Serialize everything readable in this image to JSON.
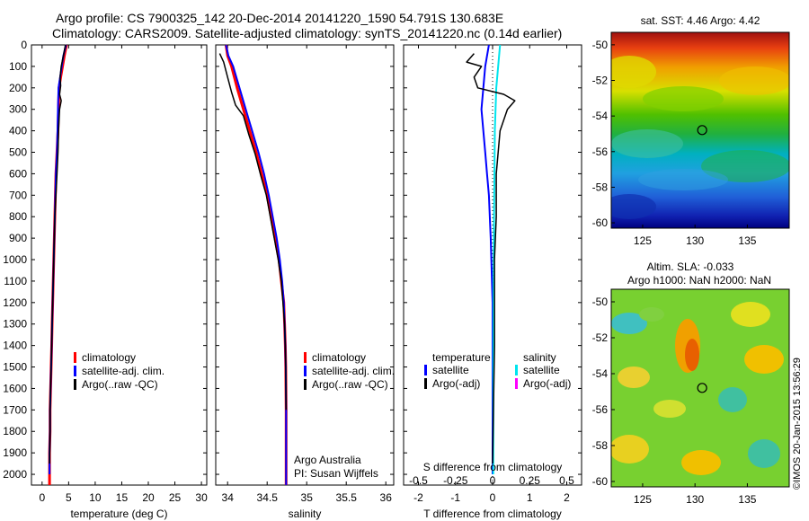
{
  "title": {
    "line1": "Argo profile: CS 7900325_142 20-Dec-2014 20141220_1590 54.791S 130.683E",
    "line2": "Climatology: CARS2009. Satellite-adjusted climatology: synTS_20141220.nc (0.14d earlier)"
  },
  "credit": "©IMOS 20-Jan-2015 13:56:29",
  "colors": {
    "climatology": "#ff0000",
    "satellite_adj": "#0000ff",
    "argo": "#000000",
    "salinity_satellite": "#00e5ee",
    "salinity_argo": "#ff00ff"
  },
  "chart_data": [
    {
      "id": "temperature",
      "type": "line",
      "xlabel": "temperature (deg C)",
      "ylabel": "",
      "xlim": [
        -2,
        31
      ],
      "ylim": [
        2050,
        0
      ],
      "xticks": [
        0,
        5,
        10,
        15,
        20,
        25,
        30
      ],
      "yticks": [
        0,
        100,
        200,
        300,
        400,
        500,
        600,
        700,
        800,
        900,
        1000,
        1100,
        1200,
        1300,
        1400,
        1500,
        1600,
        1700,
        1800,
        1900,
        2000
      ],
      "legend": [
        "climatology",
        "satellite-adj. clim.",
        "Argo(..raw -QC)"
      ],
      "series": [
        {
          "name": "climatology",
          "color": "#ff0000",
          "width": 3,
          "x": [
            4.6,
            4.2,
            3.5,
            3.2,
            3.1,
            3.0,
            2.8,
            2.6,
            2.4,
            2.2,
            2.0,
            1.9,
            1.8,
            1.7,
            1.6,
            1.5,
            1.5,
            1.4,
            1.4,
            1.4
          ],
          "y": [
            0,
            50,
            150,
            200,
            300,
            400,
            500,
            600,
            800,
            1000,
            1200,
            1300,
            1400,
            1500,
            1600,
            1700,
            1800,
            1900,
            2000,
            2050
          ]
        },
        {
          "name": "satellite-adj. clim.",
          "color": "#0000ff",
          "width": 2,
          "x": [
            4.5,
            4.0,
            3.4,
            3.1,
            3.0,
            2.9,
            2.8,
            2.6,
            2.4,
            2.2,
            2.0,
            1.9,
            1.8,
            1.7,
            1.6,
            1.5,
            1.5,
            1.4,
            1.4
          ],
          "y": [
            0,
            50,
            150,
            200,
            300,
            400,
            500,
            600,
            800,
            1000,
            1200,
            1300,
            1400,
            1500,
            1600,
            1700,
            1800,
            1900,
            2000
          ]
        },
        {
          "name": "Argo(..raw -QC)",
          "color": "#000000",
          "width": 1.5,
          "x": [
            4.4,
            4.1,
            3.6,
            3.4,
            3.5,
            3.3,
            3.6,
            3.3,
            3.1,
            3.0,
            2.8,
            2.6,
            2.4,
            2.2,
            2.0,
            1.9,
            1.8,
            1.7,
            1.6,
            1.5,
            1.5,
            1.4
          ],
          "y": [
            0,
            40,
            100,
            150,
            190,
            230,
            260,
            300,
            400,
            500,
            600,
            700,
            800,
            1000,
            1200,
            1300,
            1400,
            1500,
            1600,
            1700,
            1800,
            1950
          ]
        }
      ]
    },
    {
      "id": "salinity",
      "type": "line",
      "xlabel": "salinity",
      "ylabel": "",
      "xlim": [
        33.85,
        36.1
      ],
      "ylim": [
        2050,
        0
      ],
      "xticks": [
        34,
        34.5,
        35,
        35.5,
        36
      ],
      "legend": [
        "climatology",
        "satellite-adj. clim.",
        "Argo(..raw -QC)"
      ],
      "annotations": [
        "Argo Australia",
        "PI: Susan Wijffels"
      ],
      "series": [
        {
          "name": "climatology",
          "color": "#ff0000",
          "width": 3,
          "x": [
            33.98,
            34.0,
            34.05,
            34.12,
            34.2,
            34.28,
            34.36,
            34.43,
            34.5,
            34.55,
            34.6,
            34.65,
            34.68,
            34.71,
            34.72,
            34.73,
            34.735,
            34.74,
            34.74
          ],
          "y": [
            0,
            50,
            100,
            200,
            300,
            400,
            500,
            600,
            700,
            800,
            900,
            1000,
            1100,
            1200,
            1300,
            1400,
            1500,
            1700,
            2050
          ]
        },
        {
          "name": "satellite-adj. clim.",
          "color": "#0000ff",
          "width": 2,
          "x": [
            33.98,
            34.01,
            34.07,
            34.15,
            34.23,
            34.31,
            34.39,
            34.46,
            34.52,
            34.57,
            34.62,
            34.66,
            34.69,
            34.71,
            34.72,
            34.73,
            34.735,
            34.74,
            34.74
          ],
          "y": [
            0,
            50,
            100,
            200,
            300,
            400,
            500,
            600,
            700,
            800,
            900,
            1000,
            1100,
            1200,
            1300,
            1400,
            1500,
            1700,
            2050
          ]
        },
        {
          "name": "Argo(..raw -QC)",
          "color": "#000000",
          "width": 1.5,
          "x": [
            33.9,
            33.95,
            34.0,
            34.05,
            34.1,
            34.2,
            34.27,
            34.35,
            34.42,
            34.49,
            34.54,
            34.59,
            34.64,
            34.68,
            34.7,
            34.72,
            34.73,
            34.735,
            34.74
          ],
          "y": [
            40,
            80,
            150,
            220,
            280,
            330,
            420,
            510,
            610,
            700,
            800,
            900,
            1000,
            1100,
            1200,
            1300,
            1400,
            1500,
            1700
          ]
        }
      ]
    },
    {
      "id": "difference",
      "type": "line",
      "xlabel": "T difference from climatology",
      "xlabel2": "S difference from climatology",
      "xlim": [
        -2.4,
        2.4
      ],
      "ylim": [
        2050,
        0
      ],
      "xticks": [
        -2,
        -1,
        0,
        1,
        2
      ],
      "xticks_s": [
        -0.5,
        -0.25,
        0,
        0.25,
        0.5
      ],
      "legend_temperature": {
        "heading": "temperature",
        "items": [
          "satellite",
          "Argo(-adj)"
        ]
      },
      "legend_salinity": {
        "heading": "salinity",
        "items": [
          "satellite",
          "Argo(-adj)"
        ]
      },
      "series": [
        {
          "name": "temperature satellite",
          "color": "#0000ff",
          "width": 2,
          "x": [
            -0.1,
            -0.2,
            -0.25,
            -0.3,
            -0.25,
            -0.2,
            -0.15,
            -0.1,
            -0.05,
            0.0,
            0.0,
            0.0
          ],
          "y": [
            0,
            100,
            200,
            300,
            400,
            500,
            600,
            700,
            900,
            1200,
            1600,
            2000
          ]
        },
        {
          "name": "salinity satellite",
          "color": "#00e5ee",
          "width": 2,
          "x": [
            0.2,
            0.15,
            0.1,
            0.08,
            0.06,
            0.05,
            0.04,
            0.03,
            0.02,
            0.02
          ],
          "y": [
            0,
            100,
            200,
            300,
            400,
            600,
            800,
            1000,
            1500,
            2000
          ]
        },
        {
          "name": "temperature Argo(-adj)",
          "color": "#000000",
          "width": 1.5,
          "x": [
            -0.5,
            -0.7,
            -0.3,
            -0.5,
            -0.4,
            0.3,
            0.6,
            0.4,
            0.2,
            0.15,
            0.1,
            0.1,
            0.05,
            0.05,
            0.0
          ],
          "y": [
            40,
            80,
            100,
            150,
            200,
            230,
            260,
            300,
            400,
            500,
            600,
            800,
            1000,
            1400,
            1950
          ]
        }
      ]
    },
    {
      "id": "sst_map",
      "type": "heatmap",
      "title": "sat. SST: 4.46  Argo: 4.42",
      "xlim": [
        122,
        139
      ],
      "ylim": [
        -60.3,
        -49.3
      ],
      "xticks": [
        125,
        130,
        135
      ],
      "yticks": [
        -50,
        -52,
        -54,
        -56,
        -58,
        -60
      ],
      "marker": {
        "lon": 130.683,
        "lat": -54.791
      }
    },
    {
      "id": "sla_map",
      "type": "heatmap",
      "title": "Altim. SLA: -0.033",
      "subtitle": "Argo h1000: NaN h2000: NaN",
      "xlim": [
        122,
        139
      ],
      "ylim": [
        -60.3,
        -49.3
      ],
      "xticks": [
        125,
        130,
        135
      ],
      "yticks": [
        -50,
        -52,
        -54,
        -56,
        -58,
        -60
      ],
      "marker": {
        "lon": 130.683,
        "lat": -54.791
      }
    }
  ]
}
